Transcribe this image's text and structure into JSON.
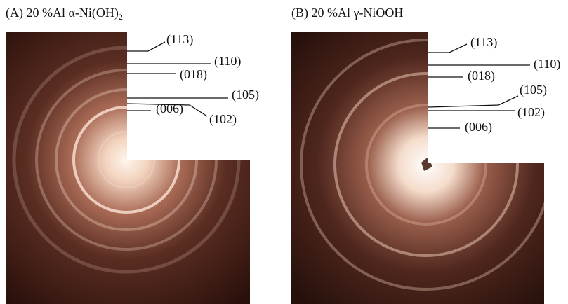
{
  "panels": [
    {
      "title": "(A) 20 %Al α-Ni(OH)",
      "title_subscript": "2",
      "labels": [
        "(113)",
        "(110)",
        "(018)",
        "(105)",
        "(102)",
        "(006)"
      ]
    },
    {
      "title": "(B) 20 %Al γ-NiOOH",
      "labels": [
        "(113)",
        "(110)",
        "(018)",
        "(105)",
        "(102)",
        "(006)"
      ]
    }
  ]
}
